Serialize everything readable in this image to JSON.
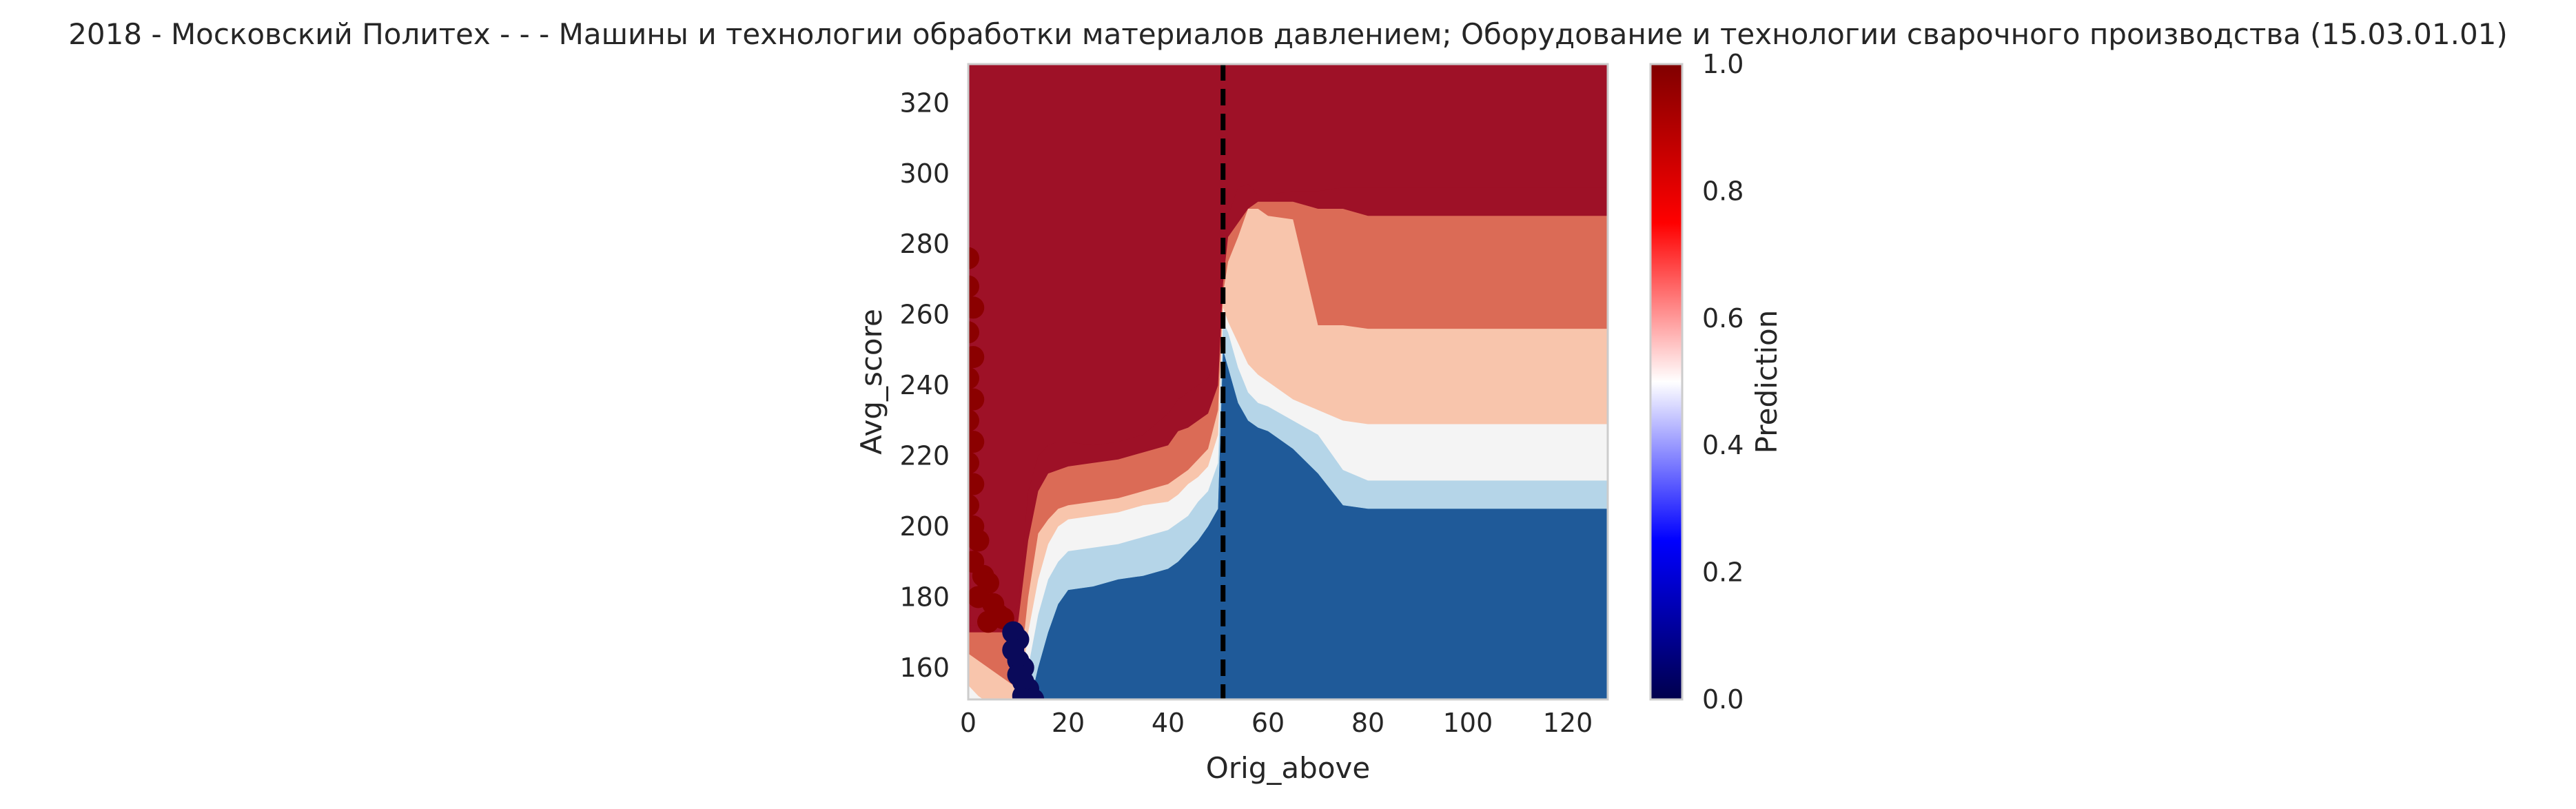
{
  "chart_data": {
    "type": "heatmap",
    "title": "2018 - Московский Политех - - - Машины и технологии обработки материалов давлением; Оборудование и технологии сварочного производства (15.03.01.01)",
    "xlabel": "Orig_above",
    "ylabel": "Avg_score",
    "xlim": [
      0,
      128
    ],
    "ylim": [
      151,
      331
    ],
    "x_ticks": [
      0,
      20,
      40,
      60,
      80,
      100,
      120
    ],
    "y_ticks": [
      160,
      180,
      200,
      220,
      240,
      260,
      280,
      300,
      320
    ],
    "grid": false,
    "colorbar": {
      "label": "Prediction",
      "range": [
        0,
        1
      ],
      "ticks": [
        0.0,
        0.2,
        0.4,
        0.6,
        0.8,
        1.0
      ],
      "tick_labels": [
        "0.0",
        "0.2",
        "0.4",
        "0.6",
        "0.8",
        "1.0"
      ],
      "colormap": "seismic"
    },
    "reference_line": {
      "x": 51,
      "style": "dashed",
      "color": "#000000"
    },
    "contour_levels": [
      {
        "range": [
          0.0,
          0.15
        ],
        "color": "#1f5a99"
      },
      {
        "range": [
          0.15,
          0.3
        ],
        "color": "#4a96c6"
      },
      {
        "range": [
          0.3,
          0.45
        ],
        "color": "#b5d5e8"
      },
      {
        "range": [
          0.45,
          0.55
        ],
        "color": "#f4f4f4"
      },
      {
        "range": [
          0.55,
          0.7
        ],
        "color": "#f8c5ac"
      },
      {
        "range": [
          0.7,
          0.85
        ],
        "color": "#db6b56"
      },
      {
        "range": [
          0.85,
          1.0
        ],
        "color": "#9e1127"
      }
    ],
    "boundaries": {
      "x": [
        0,
        2,
        4,
        6,
        8,
        10,
        12,
        14,
        16,
        18,
        20,
        25,
        30,
        35,
        40,
        42,
        44,
        46,
        48,
        50,
        51,
        52,
        54,
        56,
        58,
        60,
        65,
        70,
        75,
        80,
        100,
        128
      ],
      "levels": [
        [
          148,
          148,
          148,
          148,
          148,
          148,
          148,
          160,
          170,
          178,
          182,
          183,
          185,
          186,
          188,
          190,
          193,
          196,
          200,
          205,
          250,
          245,
          235,
          230,
          228,
          227,
          222,
          215,
          206,
          205,
          205,
          205
        ],
        [
          148,
          148,
          148,
          148,
          148,
          148,
          160,
          175,
          185,
          190,
          193,
          194,
          195,
          197,
          199,
          201,
          203,
          207,
          210,
          218,
          258,
          255,
          245,
          238,
          235,
          234,
          230,
          226,
          216,
          213,
          213,
          213
        ],
        [
          155,
          152,
          150,
          150,
          150,
          148,
          170,
          185,
          195,
          200,
          202,
          203,
          204,
          206,
          207,
          209,
          212,
          214,
          217,
          226,
          262,
          258,
          252,
          246,
          243,
          241,
          236,
          233,
          230,
          229,
          229,
          229
        ],
        [
          164,
          162,
          160,
          158,
          156,
          154,
          180,
          198,
          202,
          205,
          206,
          207,
          208,
          210,
          212,
          214,
          216,
          219,
          222,
          233,
          266,
          275,
          282,
          290,
          290,
          288,
          287,
          257,
          257,
          256,
          256,
          256
        ],
        [
          170,
          170,
          170,
          170,
          170,
          173,
          196,
          210,
          215,
          216,
          217,
          218,
          219,
          221,
          223,
          227,
          228,
          230,
          232,
          240,
          269,
          282,
          286,
          290,
          292,
          292,
          292,
          290,
          290,
          288,
          288,
          288
        ],
        [
          172,
          172,
          172,
          172,
          173,
          178,
          210,
          220,
          223,
          224,
          224,
          223,
          224,
          226,
          232,
          236,
          238,
          240,
          242,
          248,
          273,
          288,
          296,
          297,
          294,
          294,
          295,
          295,
          296,
          296,
          296,
          296
        ]
      ]
    },
    "points": {
      "class_1": [
        [
          0,
          276
        ],
        [
          0,
          268
        ],
        [
          1,
          262
        ],
        [
          0,
          255
        ],
        [
          1,
          248
        ],
        [
          0,
          242
        ],
        [
          1,
          236
        ],
        [
          0,
          230
        ],
        [
          1,
          224
        ],
        [
          0,
          218
        ],
        [
          1,
          212
        ],
        [
          0,
          206
        ],
        [
          1,
          200
        ],
        [
          2,
          196
        ],
        [
          1,
          190
        ],
        [
          3,
          186
        ],
        [
          4,
          184
        ],
        [
          2,
          180
        ],
        [
          5,
          178
        ],
        [
          6,
          175
        ],
        [
          7,
          174
        ],
        [
          4,
          173
        ]
      ],
      "class_0": [
        [
          9,
          170
        ],
        [
          10,
          168
        ],
        [
          9,
          165
        ],
        [
          10,
          162
        ],
        [
          11,
          160
        ],
        [
          10,
          158
        ],
        [
          11,
          156
        ],
        [
          12,
          154
        ],
        [
          11,
          152
        ],
        [
          12,
          151
        ],
        [
          13,
          151
        ]
      ]
    }
  }
}
